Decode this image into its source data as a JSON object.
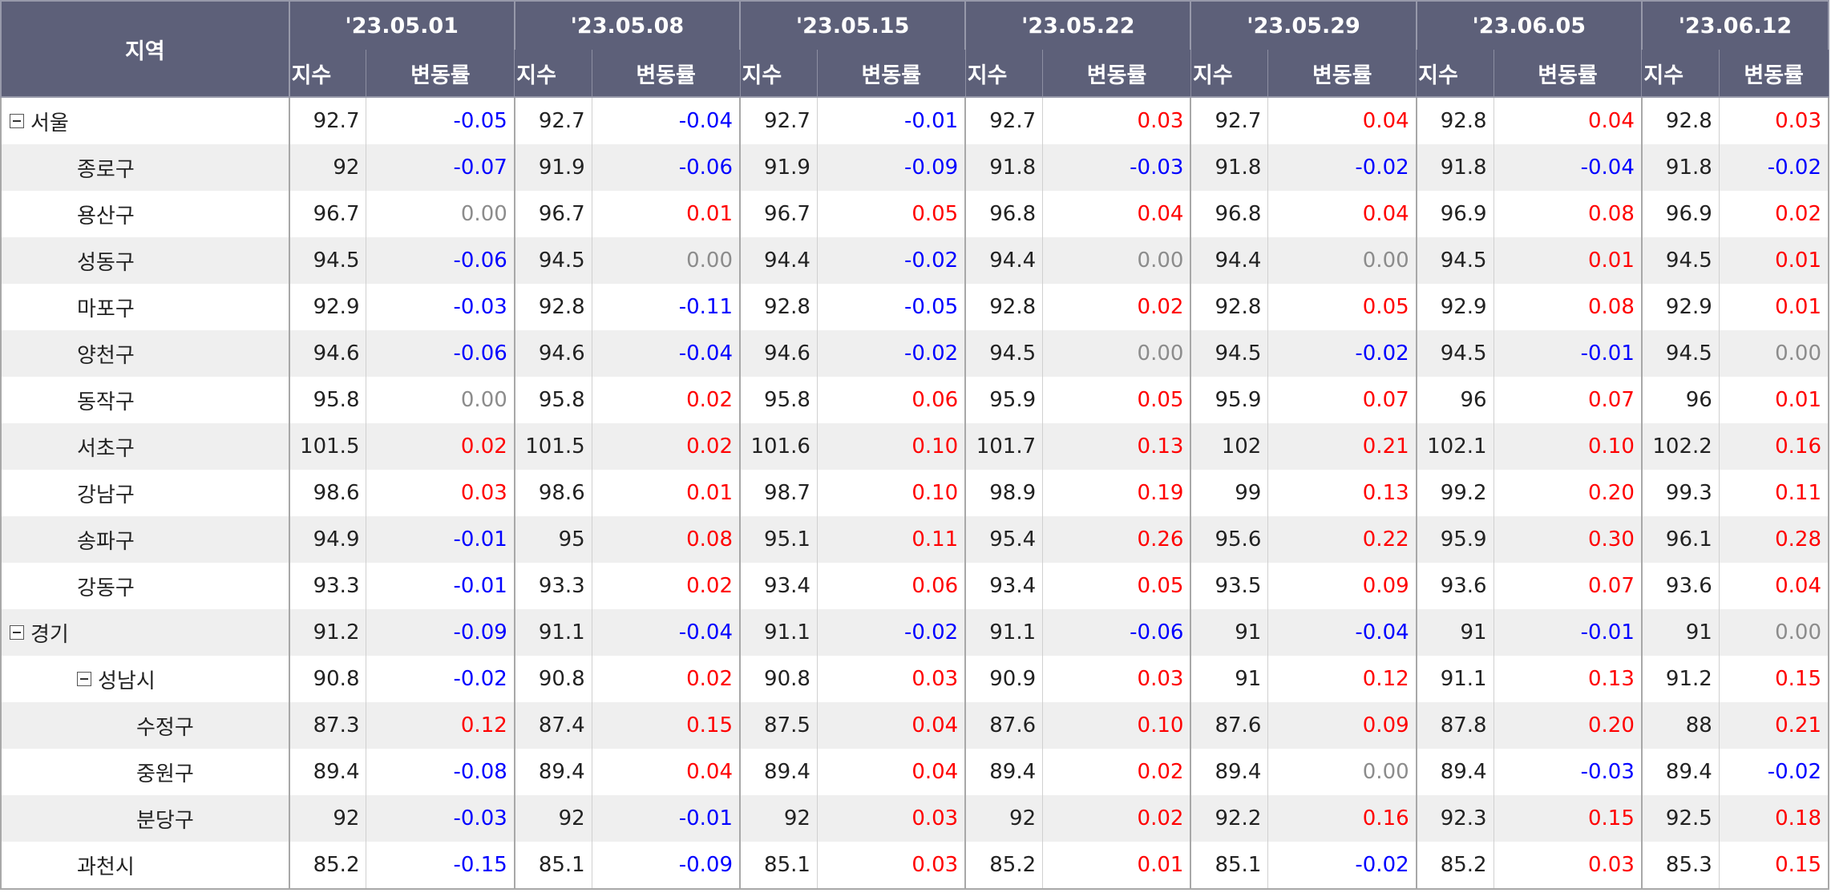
{
  "header": {
    "region_label": "지역",
    "index_label": "지수",
    "change_label": "변동률",
    "dates": [
      "'23.05.01",
      "'23.05.08",
      "'23.05.15",
      "'23.05.22",
      "'23.05.29",
      "'23.06.05",
      "'23.06.12"
    ]
  },
  "colors": {
    "header_bg": "#5d6079",
    "positive": "#ff0000",
    "negative": "#0000ff",
    "zero": "#8c8c8c",
    "alt_row": "#efefef"
  },
  "icons": {
    "group_toggle": "collapse-minus-icon"
  },
  "rows": [
    {
      "region": "서울",
      "level": 0,
      "toggle": true,
      "values": [
        [
          "92.7",
          "-0.05"
        ],
        [
          "92.7",
          "-0.04"
        ],
        [
          "92.7",
          "-0.01"
        ],
        [
          "92.7",
          "0.03"
        ],
        [
          "92.7",
          "0.04"
        ],
        [
          "92.8",
          "0.04"
        ],
        [
          "92.8",
          "0.03"
        ]
      ]
    },
    {
      "region": "종로구",
      "level": 1,
      "toggle": false,
      "values": [
        [
          "92",
          "-0.07"
        ],
        [
          "91.9",
          "-0.06"
        ],
        [
          "91.9",
          "-0.09"
        ],
        [
          "91.8",
          "-0.03"
        ],
        [
          "91.8",
          "-0.02"
        ],
        [
          "91.8",
          "-0.04"
        ],
        [
          "91.8",
          "-0.02"
        ]
      ]
    },
    {
      "region": "용산구",
      "level": 1,
      "toggle": false,
      "values": [
        [
          "96.7",
          "0.00"
        ],
        [
          "96.7",
          "0.01"
        ],
        [
          "96.7",
          "0.05"
        ],
        [
          "96.8",
          "0.04"
        ],
        [
          "96.8",
          "0.04"
        ],
        [
          "96.9",
          "0.08"
        ],
        [
          "96.9",
          "0.02"
        ]
      ]
    },
    {
      "region": "성동구",
      "level": 1,
      "toggle": false,
      "values": [
        [
          "94.5",
          "-0.06"
        ],
        [
          "94.5",
          "0.00"
        ],
        [
          "94.4",
          "-0.02"
        ],
        [
          "94.4",
          "0.00"
        ],
        [
          "94.4",
          "0.00"
        ],
        [
          "94.5",
          "0.01"
        ],
        [
          "94.5",
          "0.01"
        ]
      ]
    },
    {
      "region": "마포구",
      "level": 1,
      "toggle": false,
      "values": [
        [
          "92.9",
          "-0.03"
        ],
        [
          "92.8",
          "-0.11"
        ],
        [
          "92.8",
          "-0.05"
        ],
        [
          "92.8",
          "0.02"
        ],
        [
          "92.8",
          "0.05"
        ],
        [
          "92.9",
          "0.08"
        ],
        [
          "92.9",
          "0.01"
        ]
      ]
    },
    {
      "region": "양천구",
      "level": 1,
      "toggle": false,
      "values": [
        [
          "94.6",
          "-0.06"
        ],
        [
          "94.6",
          "-0.04"
        ],
        [
          "94.6",
          "-0.02"
        ],
        [
          "94.5",
          "0.00"
        ],
        [
          "94.5",
          "-0.02"
        ],
        [
          "94.5",
          "-0.01"
        ],
        [
          "94.5",
          "0.00"
        ]
      ]
    },
    {
      "region": "동작구",
      "level": 1,
      "toggle": false,
      "values": [
        [
          "95.8",
          "0.00"
        ],
        [
          "95.8",
          "0.02"
        ],
        [
          "95.8",
          "0.06"
        ],
        [
          "95.9",
          "0.05"
        ],
        [
          "95.9",
          "0.07"
        ],
        [
          "96",
          "0.07"
        ],
        [
          "96",
          "0.01"
        ]
      ]
    },
    {
      "region": "서초구",
      "level": 1,
      "toggle": false,
      "values": [
        [
          "101.5",
          "0.02"
        ],
        [
          "101.5",
          "0.02"
        ],
        [
          "101.6",
          "0.10"
        ],
        [
          "101.7",
          "0.13"
        ],
        [
          "102",
          "0.21"
        ],
        [
          "102.1",
          "0.10"
        ],
        [
          "102.2",
          "0.16"
        ]
      ]
    },
    {
      "region": "강남구",
      "level": 1,
      "toggle": false,
      "values": [
        [
          "98.6",
          "0.03"
        ],
        [
          "98.6",
          "0.01"
        ],
        [
          "98.7",
          "0.10"
        ],
        [
          "98.9",
          "0.19"
        ],
        [
          "99",
          "0.13"
        ],
        [
          "99.2",
          "0.20"
        ],
        [
          "99.3",
          "0.11"
        ]
      ]
    },
    {
      "region": "송파구",
      "level": 1,
      "toggle": false,
      "values": [
        [
          "94.9",
          "-0.01"
        ],
        [
          "95",
          "0.08"
        ],
        [
          "95.1",
          "0.11"
        ],
        [
          "95.4",
          "0.26"
        ],
        [
          "95.6",
          "0.22"
        ],
        [
          "95.9",
          "0.30"
        ],
        [
          "96.1",
          "0.28"
        ]
      ]
    },
    {
      "region": "강동구",
      "level": 1,
      "toggle": false,
      "values": [
        [
          "93.3",
          "-0.01"
        ],
        [
          "93.3",
          "0.02"
        ],
        [
          "93.4",
          "0.06"
        ],
        [
          "93.4",
          "0.05"
        ],
        [
          "93.5",
          "0.09"
        ],
        [
          "93.6",
          "0.07"
        ],
        [
          "93.6",
          "0.04"
        ]
      ]
    },
    {
      "region": "경기",
      "level": 0,
      "toggle": true,
      "values": [
        [
          "91.2",
          "-0.09"
        ],
        [
          "91.1",
          "-0.04"
        ],
        [
          "91.1",
          "-0.02"
        ],
        [
          "91.1",
          "-0.06"
        ],
        [
          "91",
          "-0.04"
        ],
        [
          "91",
          "-0.01"
        ],
        [
          "91",
          "0.00"
        ]
      ]
    },
    {
      "region": "성남시",
      "level": 1,
      "toggle": true,
      "values": [
        [
          "90.8",
          "-0.02"
        ],
        [
          "90.8",
          "0.02"
        ],
        [
          "90.8",
          "0.03"
        ],
        [
          "90.9",
          "0.03"
        ],
        [
          "91",
          "0.12"
        ],
        [
          "91.1",
          "0.13"
        ],
        [
          "91.2",
          "0.15"
        ]
      ]
    },
    {
      "region": "수정구",
      "level": 2,
      "toggle": false,
      "values": [
        [
          "87.3",
          "0.12"
        ],
        [
          "87.4",
          "0.15"
        ],
        [
          "87.5",
          "0.04"
        ],
        [
          "87.6",
          "0.10"
        ],
        [
          "87.6",
          "0.09"
        ],
        [
          "87.8",
          "0.20"
        ],
        [
          "88",
          "0.21"
        ]
      ]
    },
    {
      "region": "중원구",
      "level": 2,
      "toggle": false,
      "values": [
        [
          "89.4",
          "-0.08"
        ],
        [
          "89.4",
          "0.04"
        ],
        [
          "89.4",
          "0.04"
        ],
        [
          "89.4",
          "0.02"
        ],
        [
          "89.4",
          "0.00"
        ],
        [
          "89.4",
          "-0.03"
        ],
        [
          "89.4",
          "-0.02"
        ]
      ]
    },
    {
      "region": "분당구",
      "level": 2,
      "toggle": false,
      "values": [
        [
          "92",
          "-0.03"
        ],
        [
          "92",
          "-0.01"
        ],
        [
          "92",
          "0.03"
        ],
        [
          "92",
          "0.02"
        ],
        [
          "92.2",
          "0.16"
        ],
        [
          "92.3",
          "0.15"
        ],
        [
          "92.5",
          "0.18"
        ]
      ]
    },
    {
      "region": "과천시",
      "level": 1,
      "toggle": false,
      "values": [
        [
          "85.2",
          "-0.15"
        ],
        [
          "85.1",
          "-0.09"
        ],
        [
          "85.1",
          "0.03"
        ],
        [
          "85.2",
          "0.01"
        ],
        [
          "85.1",
          "-0.02"
        ],
        [
          "85.2",
          "0.03"
        ],
        [
          "85.3",
          "0.15"
        ]
      ]
    }
  ]
}
